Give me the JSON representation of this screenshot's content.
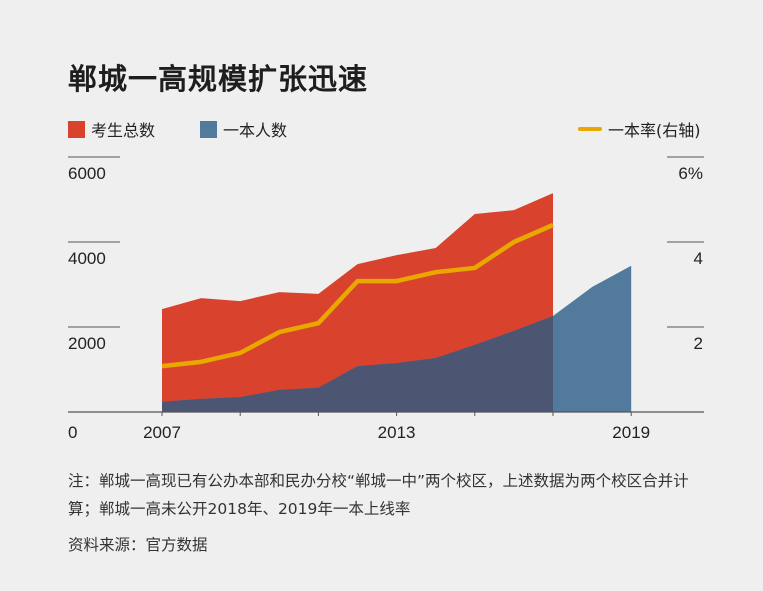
{
  "title": "郸城一高规模扩张迅速",
  "colors": {
    "total": "#d9432e",
    "first_tier": "#527a9c",
    "overlap": "#4c5572",
    "rate": "#e8a800"
  },
  "chart_data": {
    "type": "area",
    "title": "郸城一高规模扩张迅速",
    "x": [
      2007,
      2008,
      2009,
      2010,
      2011,
      2012,
      2013,
      2014,
      2015,
      2016,
      2017,
      2018,
      2019
    ],
    "x_tick_labels": [
      "2007",
      "2013",
      "2019"
    ],
    "left_axis": {
      "ylim": [
        0,
        6000
      ],
      "tick_labels": [
        "0",
        "2000",
        "4000",
        "6000"
      ]
    },
    "right_axis": {
      "ylim": [
        0,
        6
      ],
      "tick_labels": [
        "2",
        "4",
        "6%"
      ]
    },
    "series": [
      {
        "name": "考生总数",
        "type": "area",
        "axis": "left",
        "values": [
          2420,
          2680,
          2610,
          2820,
          2780,
          3480,
          3690,
          3860,
          4660,
          4750,
          5150,
          null,
          null
        ]
      },
      {
        "name": "一本人数",
        "type": "area",
        "axis": "left",
        "values": [
          240,
          310,
          350,
          520,
          570,
          1080,
          1150,
          1270,
          1580,
          1910,
          2260,
          2940,
          3440
        ]
      },
      {
        "name": "一本率(右轴)",
        "type": "line",
        "axis": "right",
        "values": [
          1.08,
          1.18,
          1.39,
          1.88,
          2.09,
          3.08,
          3.08,
          3.29,
          3.39,
          4.0,
          4.4,
          null,
          null
        ]
      }
    ],
    "grid": true,
    "legend": "top"
  },
  "notes": {
    "line1": "注：郸城一高现已有公办本部和民办分校“郸城一中”两个校区，上述数据为两个校区合并计算；郸城一高未公开2018年、2019年一本上线率",
    "source": "资料来源：官方数据"
  }
}
